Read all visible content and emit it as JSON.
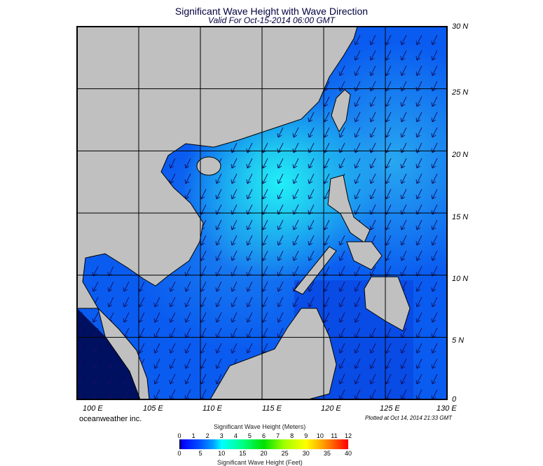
{
  "title": "Significant Wave Height with Wave Direction",
  "subtitle": "Valid For Oct-15-2014 06:00 GMT",
  "map": {
    "region": "South China Sea",
    "lon_labels": [
      "100 E",
      "105 E",
      "110 E",
      "115 E",
      "120 E",
      "125 E",
      "130 E"
    ],
    "lat_labels": [
      "30 N",
      "25 N",
      "20 N",
      "15 N",
      "10 N",
      "5 N",
      "0"
    ],
    "ocean_color": "#0a5cf0",
    "land_color": "#c0c0c0",
    "wave_direction": "toward southwest"
  },
  "footer": {
    "brand": "oceanweather inc.",
    "plotted": "Plotted at Oct 14, 2014 21:33 GMT"
  },
  "colorbar": {
    "meters_title": "Significant Wave Height (Meters)",
    "meters_ticks": [
      "0",
      "1",
      "2",
      "3",
      "4",
      "5",
      "6",
      "7",
      "8",
      "9",
      "10",
      "11",
      "12"
    ],
    "feet_title": "Significant Wave Height (Feet)",
    "feet_ticks": [
      "0",
      "5",
      "10",
      "15",
      "20",
      "25",
      "30",
      "35",
      "40"
    ]
  }
}
